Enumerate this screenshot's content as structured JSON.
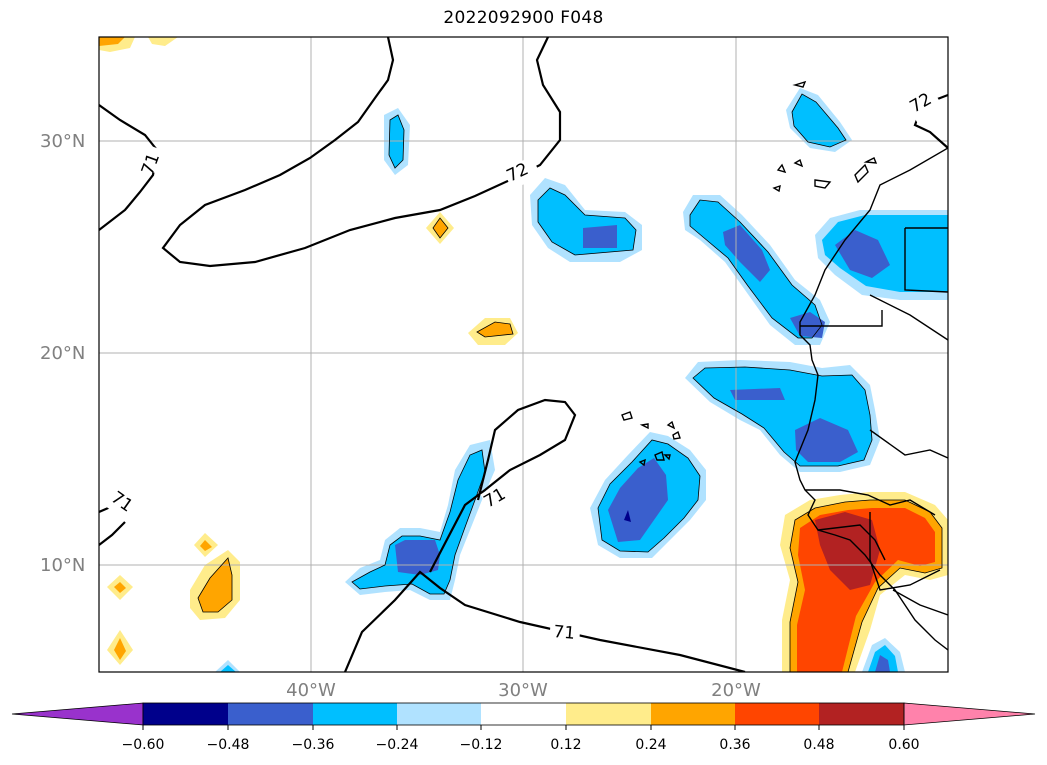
{
  "title": "2022092900 F048",
  "axes": {
    "lat_labels": [
      "30°N",
      "20°N",
      "10°N"
    ],
    "lon_labels": [
      "40°W",
      "30°W",
      "20°W"
    ]
  },
  "contours": {
    "labels": [
      "71",
      "72",
      "72",
      "71",
      "71",
      "71"
    ]
  },
  "colorbar": {
    "ticks": [
      "−0.60",
      "−0.48",
      "−0.36",
      "−0.24",
      "−0.12",
      "0.12",
      "0.24",
      "0.36",
      "0.48",
      "0.60"
    ],
    "colors": [
      "#9932cc",
      "#00008b",
      "#3a5fcd",
      "#00bfff",
      "#b0e2ff",
      "#ffffff",
      "#ffec8b",
      "#ffa500",
      "#ff4500",
      "#b22222",
      "#ff82ab"
    ]
  },
  "colors": {
    "gridline": "#b0b0b0",
    "contour": "#000000"
  }
}
